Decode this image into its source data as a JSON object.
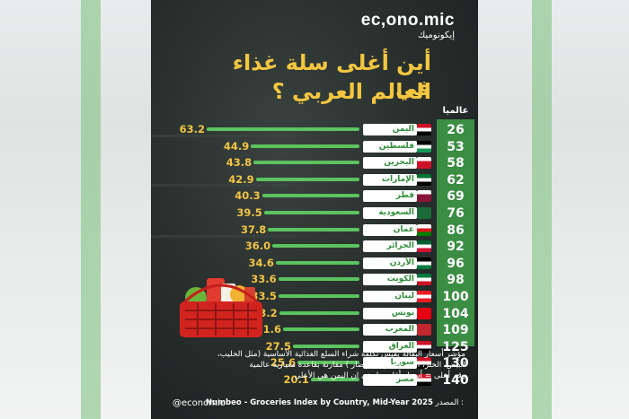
{
  "brand": {
    "logo_latin": "ec,ono.mic",
    "logo_arabic": "إيكونوميك"
  },
  "heading": {
    "line1": "أين أغلى سلة غذاء في",
    "line2": "العالم العربي ؟"
  },
  "chart_data": {
    "type": "bar",
    "orientation": "horizontal",
    "rank_header": "عالميا",
    "rows": [
      {
        "rank": "26",
        "country": "اليمن",
        "value": 63.2,
        "label": "63.2"
      },
      {
        "rank": "53",
        "country": "فلسطين",
        "value": 44.9,
        "label": "44.9"
      },
      {
        "rank": "58",
        "country": "البحرين",
        "value": 43.8,
        "label": "43.8"
      },
      {
        "rank": "62",
        "country": "الإمارات",
        "value": 42.9,
        "label": "42.9"
      },
      {
        "rank": "69",
        "country": "قطر",
        "value": 40.3,
        "label": "40.3"
      },
      {
        "rank": "76",
        "country": "السعودية",
        "value": 39.5,
        "label": "39.5"
      },
      {
        "rank": "86",
        "country": "عمان",
        "value": 37.8,
        "label": "37.8"
      },
      {
        "rank": "92",
        "country": "الجزائر",
        "value": 36.0,
        "label": "36.0"
      },
      {
        "rank": "96",
        "country": "الأردن",
        "value": 34.6,
        "label": "34.6"
      },
      {
        "rank": "98",
        "country": "الكويت",
        "value": 33.6,
        "label": "33.6"
      },
      {
        "rank": "100",
        "country": "لبنان",
        "value": 33.5,
        "label": "33.5"
      },
      {
        "rank": "104",
        "country": "تونس",
        "value": 33.2,
        "label": "33.2"
      },
      {
        "rank": "109",
        "country": "المغرب",
        "value": 31.6,
        "label": "31.6"
      },
      {
        "rank": "125",
        "country": "العراق",
        "value": 27.5,
        "label": "27.5"
      },
      {
        "rank": "130",
        "country": "سوريا",
        "value": 25.6,
        "label": "25.6"
      },
      {
        "rank": "140",
        "country": "مصر",
        "value": 20.1,
        "label": "20.1"
      }
    ],
    "xlim": [
      0,
      63.2
    ],
    "bar_color": "#5cc35f",
    "value_color": "#f2c443"
  },
  "note": {
    "line1": "مؤشر أسعار البقالة يقيس تكلفة شراء السلع الغذائية الأساسية (مثل الحليب،",
    "line2": "البيض، الخبز، الأرز، اللحوم، الخضار ) مقارنة بقاعدة معيارية عالمية",
    "line3": "رقم أعلى = أسعار أغلى مايعني ان اليمن هي الأعلى"
  },
  "footer": {
    "handle": "@economic",
    "source_label": "المصدر :",
    "source_text": "Numbeo - Groceries Index by Country, Mid-Year 2025"
  },
  "colors": {
    "accent": "#f3c640",
    "green": "#3b8d43",
    "background": "#1f2624"
  }
}
